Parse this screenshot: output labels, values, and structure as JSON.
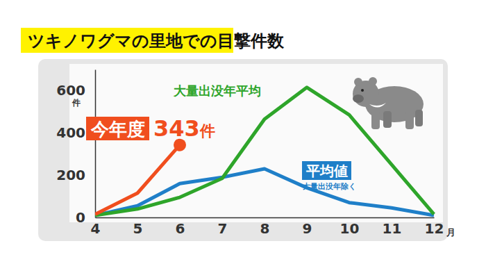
{
  "chart_data": {
    "type": "line",
    "title": "ツキノワグマの里地での目撃件数",
    "xlabel": "月",
    "ylabel": "件",
    "categories": [
      "4",
      "5",
      "6",
      "7",
      "8",
      "9",
      "10",
      "11",
      "12"
    ],
    "ylim": [
      0,
      700
    ],
    "yticks": [
      0,
      200,
      400,
      600
    ],
    "grid": false,
    "series": [
      {
        "name": "今年度",
        "color": "#f04e1e",
        "values": [
          15,
          115,
          343,
          null,
          null,
          null,
          null,
          null,
          null
        ],
        "value_labels": [
          null,
          null,
          "343件",
          null,
          null,
          null,
          null,
          null,
          null
        ],
        "marker": "end"
      },
      {
        "name": "大量出没年平均",
        "color": "#2ea52a",
        "values": [
          10,
          40,
          95,
          185,
          465,
          615,
          485,
          250,
          15
        ]
      },
      {
        "name": "平均値",
        "note": "大量出没年除く",
        "color": "#1f7fc8",
        "values": [
          10,
          55,
          160,
          190,
          230,
          140,
          70,
          45,
          10
        ]
      }
    ]
  }
}
